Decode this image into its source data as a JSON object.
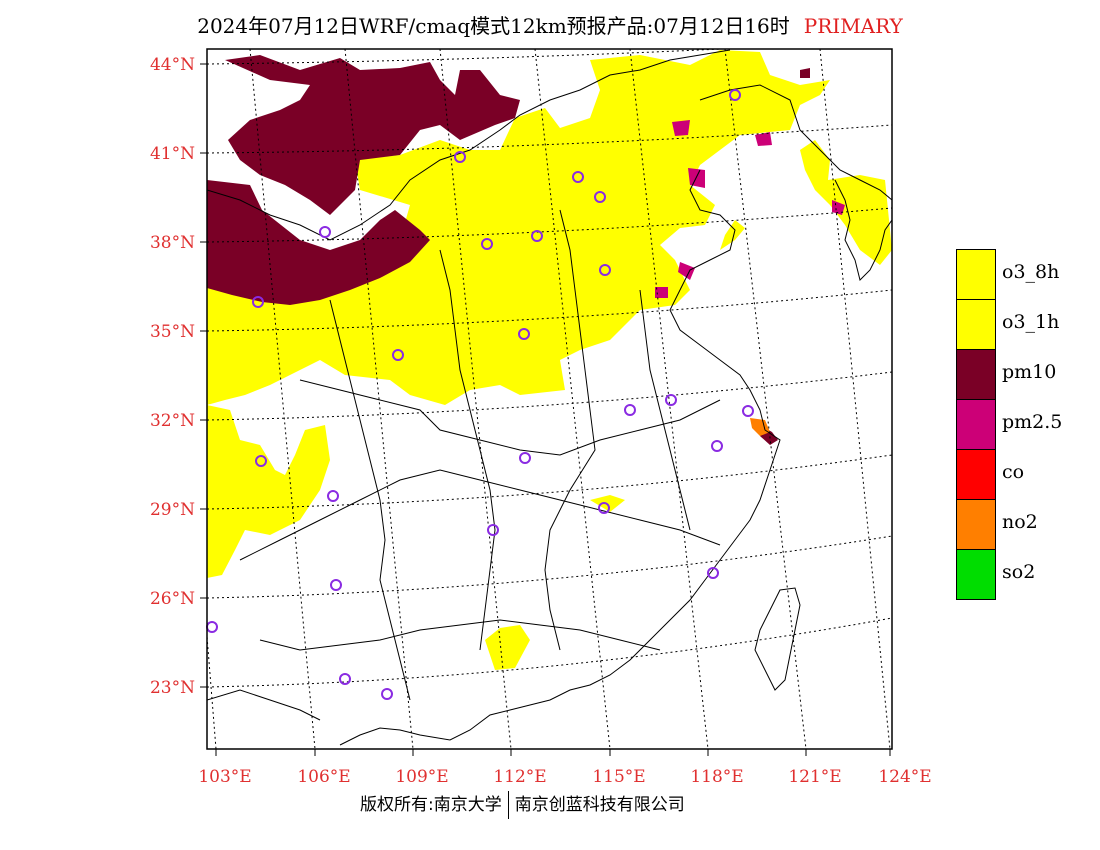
{
  "title": {
    "main": "2024年07月12日WRF/cmaq模式12km预报产品:07月12日16时",
    "tag": "PRIMARY"
  },
  "axes": {
    "lat_labels": [
      "44°N",
      "41°N",
      "38°N",
      "35°N",
      "32°N",
      "29°N",
      "26°N",
      "23°N"
    ],
    "lon_labels": [
      "103°E",
      "106°E",
      "109°E",
      "112°E",
      "115°E",
      "118°E",
      "121°E",
      "124°E"
    ],
    "label_color": "#e03030"
  },
  "legend": [
    {
      "label": "o3_8h",
      "color": "#ffff00"
    },
    {
      "label": "o3_1h",
      "color": "#ffff00"
    },
    {
      "label": "pm10",
      "color": "#7a0026"
    },
    {
      "label": "pm2.5",
      "color": "#cc0077"
    },
    {
      "label": "co",
      "color": "#ff0000"
    },
    {
      "label": "no2",
      "color": "#ff7f00"
    },
    {
      "label": "so2",
      "color": "#00dd00"
    }
  ],
  "footer": {
    "left": "版权所有:南京大学",
    "right": "南京创蓝科技有限公司"
  }
}
